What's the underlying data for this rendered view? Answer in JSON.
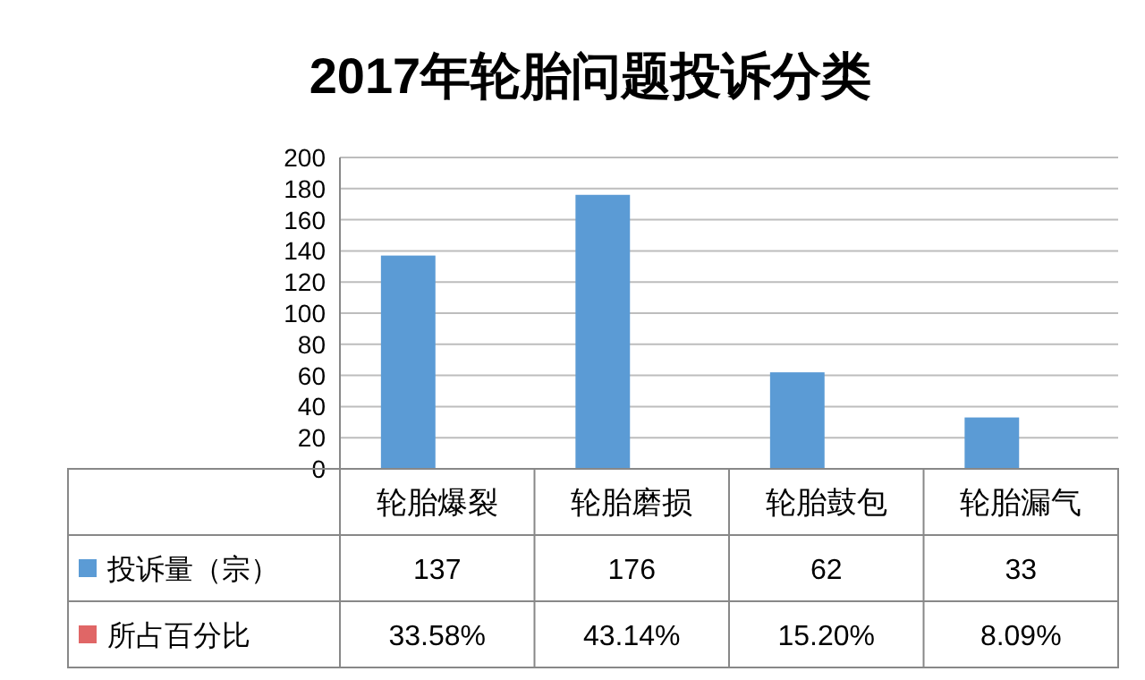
{
  "chart_data": {
    "type": "bar",
    "title": "2017年轮胎问题投诉分类",
    "categories": [
      "轮胎爆裂",
      "轮胎磨损",
      "轮胎鼓包",
      "轮胎漏气"
    ],
    "series": [
      {
        "name": "投诉量（宗）",
        "color": "#5b9bd5",
        "values": [
          137,
          176,
          62,
          33
        ]
      },
      {
        "name": "所占百分比",
        "color": "#e06666",
        "values": [
          0.3358,
          0.4314,
          0.152,
          0.0809
        ],
        "value_labels": [
          "33.58%",
          "43.14%",
          "15.20%",
          "8.09%"
        ]
      }
    ],
    "ylim": [
      0,
      200
    ],
    "yticks": [
      0,
      20,
      40,
      60,
      80,
      100,
      120,
      140,
      160,
      180,
      200
    ],
    "grid": "y",
    "data_labels": true,
    "legend": "bottom left"
  }
}
